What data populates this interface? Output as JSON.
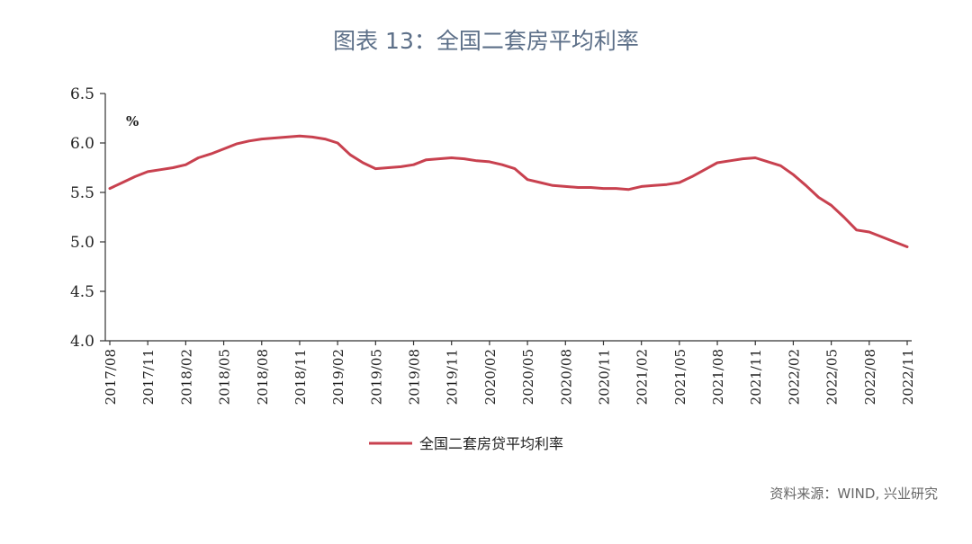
{
  "title": "图表 13：全国二套房平均利率",
  "source": "资料来源：WIND, 兴业研究",
  "chart_data": {
    "type": "line",
    "unit_label": "%",
    "ylim": [
      4.0,
      6.5
    ],
    "yticks": [
      "4.0",
      "4.5",
      "5.0",
      "5.5",
      "6.0",
      "6.5"
    ],
    "x_tick_labels": [
      "2017/08",
      "2017/11",
      "2018/02",
      "2018/05",
      "2018/08",
      "2018/11",
      "2019/02",
      "2019/05",
      "2019/08",
      "2019/11",
      "2020/02",
      "2020/05",
      "2020/08",
      "2020/11",
      "2021/02",
      "2021/05",
      "2021/08",
      "2021/11",
      "2022/02",
      "2022/05",
      "2022/08",
      "2022/11"
    ],
    "x": [
      "2017/08",
      "2017/09",
      "2017/10",
      "2017/11",
      "2017/12",
      "2018/01",
      "2018/02",
      "2018/03",
      "2018/04",
      "2018/05",
      "2018/06",
      "2018/07",
      "2018/08",
      "2018/09",
      "2018/10",
      "2018/11",
      "2018/12",
      "2019/01",
      "2019/02",
      "2019/03",
      "2019/04",
      "2019/05",
      "2019/06",
      "2019/07",
      "2019/08",
      "2019/09",
      "2019/10",
      "2019/11",
      "2019/12",
      "2020/01",
      "2020/02",
      "2020/03",
      "2020/04",
      "2020/05",
      "2020/06",
      "2020/07",
      "2020/08",
      "2020/09",
      "2020/10",
      "2020/11",
      "2020/12",
      "2021/01",
      "2021/02",
      "2021/03",
      "2021/04",
      "2021/05",
      "2021/06",
      "2021/07",
      "2021/08",
      "2021/09",
      "2021/10",
      "2021/11",
      "2021/12",
      "2022/01",
      "2022/02",
      "2022/03",
      "2022/04",
      "2022/05",
      "2022/06",
      "2022/07",
      "2022/08",
      "2022/09",
      "2022/10",
      "2022/11"
    ],
    "series": [
      {
        "name": "全国二套房贷平均利率",
        "color": "#c8414f",
        "values": [
          5.54,
          5.6,
          5.66,
          5.71,
          5.73,
          5.75,
          5.78,
          5.85,
          5.89,
          5.94,
          5.99,
          6.02,
          6.04,
          6.05,
          6.06,
          6.07,
          6.06,
          6.04,
          6.0,
          5.88,
          5.8,
          5.74,
          5.75,
          5.76,
          5.78,
          5.83,
          5.84,
          5.85,
          5.84,
          5.82,
          5.81,
          5.78,
          5.74,
          5.63,
          5.6,
          5.57,
          5.56,
          5.55,
          5.55,
          5.54,
          5.54,
          5.53,
          5.56,
          5.57,
          5.58,
          5.6,
          5.66,
          5.73,
          5.8,
          5.82,
          5.84,
          5.85,
          5.81,
          5.77,
          5.68,
          5.57,
          5.45,
          5.37,
          5.25,
          5.12,
          5.1,
          5.05,
          5.0,
          4.95
        ]
      }
    ],
    "legend_position": "bottom",
    "grid": false
  }
}
